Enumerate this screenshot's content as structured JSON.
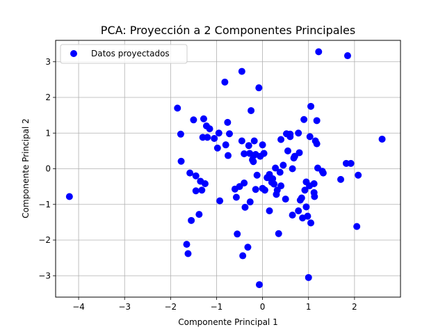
{
  "chart_data": {
    "type": "scatter",
    "title": "PCA: Proyección a 2 Componentes Principales",
    "xlabel": "Componente Principal 1",
    "ylabel": "Componente Principal 2",
    "xlim": [
      -4.5,
      3.0
    ],
    "ylim": [
      -3.6,
      3.6
    ],
    "xticks": [
      -4,
      -3,
      -2,
      -1,
      0,
      1,
      2
    ],
    "yticks": [
      -3,
      -2,
      -1,
      0,
      1,
      2,
      3
    ],
    "grid": true,
    "legend": "upper-left",
    "series": [
      {
        "name": "Datos proyectados",
        "color": "#0000ff",
        "marker": "circle",
        "points": [
          [
            -4.2,
            -0.78
          ],
          [
            -1.85,
            1.7
          ],
          [
            -1.78,
            0.97
          ],
          [
            -1.77,
            0.21
          ],
          [
            -1.65,
            -2.12
          ],
          [
            -1.62,
            -2.38
          ],
          [
            -1.58,
            -0.12
          ],
          [
            -1.55,
            -1.45
          ],
          [
            -1.5,
            1.37
          ],
          [
            -1.45,
            -0.2
          ],
          [
            -1.45,
            -0.62
          ],
          [
            -1.38,
            -1.28
          ],
          [
            -1.35,
            -0.35
          ],
          [
            -1.32,
            -0.6
          ],
          [
            -1.3,
            0.88
          ],
          [
            -1.28,
            1.4
          ],
          [
            -1.25,
            -0.42
          ],
          [
            -1.22,
            1.2
          ],
          [
            -1.2,
            0.88
          ],
          [
            -1.15,
            1.12
          ],
          [
            -1.05,
            0.85
          ],
          [
            -0.98,
            0.58
          ],
          [
            -0.95,
            1.0
          ],
          [
            -0.93,
            -0.9
          ],
          [
            -0.82,
            2.43
          ],
          [
            -0.8,
            0.67
          ],
          [
            -0.76,
            1.3
          ],
          [
            -0.75,
            0.37
          ],
          [
            -0.72,
            0.98
          ],
          [
            -0.6,
            -0.57
          ],
          [
            -0.57,
            -0.8
          ],
          [
            -0.55,
            -1.83
          ],
          [
            -0.5,
            -0.5
          ],
          [
            -0.45,
            0.78
          ],
          [
            -0.45,
            2.73
          ],
          [
            -0.43,
            -2.44
          ],
          [
            -0.4,
            0.42
          ],
          [
            -0.4,
            -0.4
          ],
          [
            -0.38,
            -1.08
          ],
          [
            -0.32,
            -2.2
          ],
          [
            -0.3,
            0.65
          ],
          [
            -0.28,
            0.43
          ],
          [
            -0.27,
            -0.93
          ],
          [
            -0.25,
            1.63
          ],
          [
            -0.22,
            0.25
          ],
          [
            -0.2,
            0.2
          ],
          [
            -0.2,
            0.37
          ],
          [
            -0.18,
            0.78
          ],
          [
            -0.15,
            -0.58
          ],
          [
            -0.15,
            0.4
          ],
          [
            -0.12,
            -0.18
          ],
          [
            -0.08,
            2.27
          ],
          [
            -0.07,
            -3.25
          ],
          [
            -0.05,
            0.35
          ],
          [
            0.0,
            0.67
          ],
          [
            0.0,
            -0.55
          ],
          [
            0.03,
            0.43
          ],
          [
            0.05,
            -0.6
          ],
          [
            0.1,
            -0.25
          ],
          [
            0.15,
            -1.18
          ],
          [
            0.15,
            -0.16
          ],
          [
            0.2,
            -0.38
          ],
          [
            0.22,
            -0.28
          ],
          [
            0.25,
            -0.43
          ],
          [
            0.28,
            0.02
          ],
          [
            0.3,
            -0.72
          ],
          [
            0.32,
            -0.6
          ],
          [
            0.35,
            -1.82
          ],
          [
            0.38,
            -0.1
          ],
          [
            0.4,
            -0.48
          ],
          [
            0.4,
            0.82
          ],
          [
            0.45,
            0.1
          ],
          [
            0.5,
            -0.85
          ],
          [
            0.52,
            0.98
          ],
          [
            0.55,
            0.5
          ],
          [
            0.6,
            0.9
          ],
          [
            0.6,
            0.97
          ],
          [
            0.65,
            -1.3
          ],
          [
            0.65,
            0.0
          ],
          [
            0.68,
            0.3
          ],
          [
            0.7,
            0.35
          ],
          [
            0.78,
            1.0
          ],
          [
            0.78,
            -1.18
          ],
          [
            0.8,
            0.45
          ],
          [
            0.82,
            -0.88
          ],
          [
            0.85,
            -0.82
          ],
          [
            0.87,
            -1.38
          ],
          [
            0.9,
            1.38
          ],
          [
            0.92,
            -0.6
          ],
          [
            0.95,
            -1.07
          ],
          [
            0.95,
            -0.37
          ],
          [
            0.98,
            -1.33
          ],
          [
            1.0,
            -3.05
          ],
          [
            1.02,
            -0.48
          ],
          [
            1.03,
            0.9
          ],
          [
            1.05,
            1.75
          ],
          [
            1.05,
            -1.52
          ],
          [
            1.12,
            -0.67
          ],
          [
            1.12,
            -0.42
          ],
          [
            1.13,
            -0.78
          ],
          [
            1.15,
            0.78
          ],
          [
            1.18,
            0.7
          ],
          [
            1.18,
            1.35
          ],
          [
            1.2,
            0.02
          ],
          [
            1.22,
            3.28
          ],
          [
            1.3,
            -0.07
          ],
          [
            1.32,
            -0.12
          ],
          [
            1.7,
            -0.3
          ],
          [
            1.82,
            0.15
          ],
          [
            1.85,
            3.17
          ],
          [
            1.92,
            0.15
          ],
          [
            2.05,
            -1.62
          ],
          [
            2.08,
            -0.18
          ],
          [
            2.6,
            0.83
          ]
        ]
      }
    ]
  }
}
